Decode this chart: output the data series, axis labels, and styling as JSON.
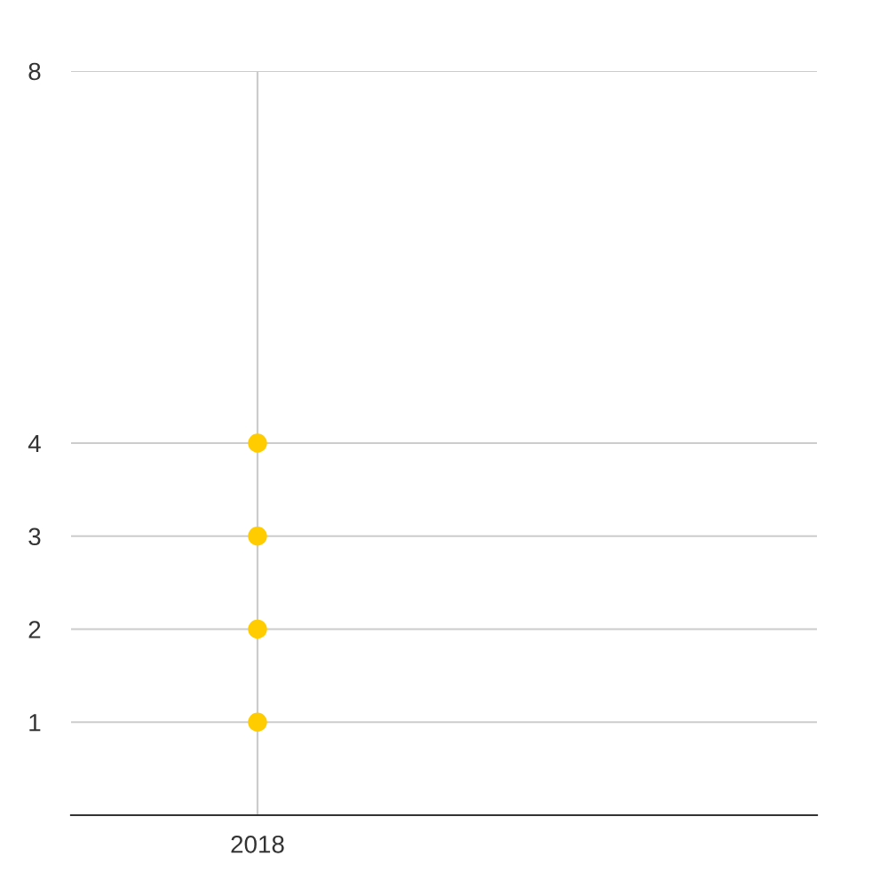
{
  "chart_data": {
    "type": "scatter",
    "categories": [
      "2018",
      null
    ],
    "series": [
      {
        "color": "#ffcc00",
        "values": [
          1,
          null
        ]
      },
      {
        "color": "#ffcc00",
        "values": [
          2,
          null
        ]
      },
      {
        "color": "#ffcc00",
        "values": [
          3,
          null
        ]
      },
      {
        "color": "#ffcc00",
        "values": [
          4,
          null
        ]
      }
    ],
    "ylim": [
      0,
      8
    ],
    "yticks": [
      1,
      2,
      3,
      4,
      8
    ],
    "grid": true,
    "marker": "circle"
  }
}
